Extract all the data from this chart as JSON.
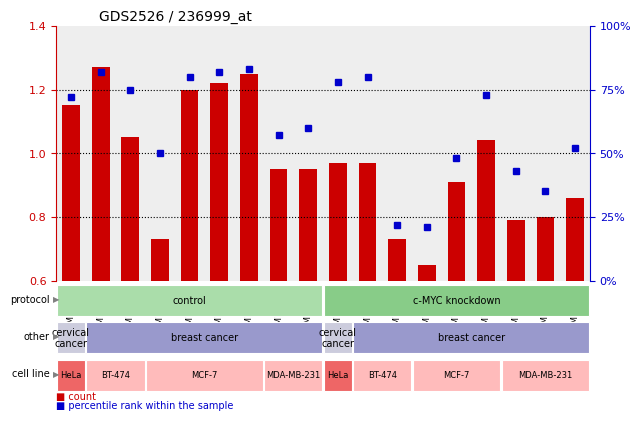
{
  "title": "GDS2526 / 236999_at",
  "samples": [
    "GSM136095",
    "GSM136097",
    "GSM136079",
    "GSM136081",
    "GSM136083",
    "GSM136085",
    "GSM136087",
    "GSM136089",
    "GSM136091",
    "GSM136096",
    "GSM136098",
    "GSM136080",
    "GSM136082",
    "GSM136084",
    "GSM136086",
    "GSM136088",
    "GSM136090",
    "GSM136092"
  ],
  "bar_values": [
    1.15,
    1.27,
    1.05,
    0.73,
    1.2,
    1.22,
    1.25,
    0.95,
    0.95,
    0.97,
    0.97,
    0.73,
    0.65,
    0.91,
    1.04,
    0.79,
    0.8,
    0.86
  ],
  "dot_values": [
    72,
    82,
    75,
    50,
    80,
    82,
    83,
    57,
    60,
    78,
    80,
    22,
    21,
    48,
    73,
    43,
    35,
    52
  ],
  "ylim_left": [
    0.6,
    1.4
  ],
  "ylim_right": [
    0,
    100
  ],
  "yticks_left": [
    0.6,
    0.8,
    1.0,
    1.2,
    1.4
  ],
  "yticks_right": [
    0,
    25,
    50,
    75,
    100
  ],
  "ytick_labels_right": [
    "0%",
    "25%",
    "50%",
    "75%",
    "100%"
  ],
  "bar_color": "#cc0000",
  "dot_color": "#0000cc",
  "grid_color": "#000000",
  "protocol_groups": [
    {
      "label": "control",
      "start": 0,
      "end": 9,
      "color": "#aaddaa"
    },
    {
      "label": "c-MYC knockdown",
      "start": 9,
      "end": 18,
      "color": "#88cc88"
    }
  ],
  "other_groups": [
    {
      "label": "cervical\ncancer",
      "start": 0,
      "end": 1,
      "color": "#ccccdd"
    },
    {
      "label": "breast cancer",
      "start": 1,
      "end": 9,
      "color": "#9999cc"
    },
    {
      "label": "cervical\ncancer",
      "start": 9,
      "end": 10,
      "color": "#ccccdd"
    },
    {
      "label": "breast cancer",
      "start": 10,
      "end": 18,
      "color": "#9999cc"
    }
  ],
  "cell_line_groups": [
    {
      "label": "HeLa",
      "start": 0,
      "end": 1,
      "color": "#ee6666"
    },
    {
      "label": "BT-474",
      "start": 1,
      "end": 3,
      "color": "#ffbbbb"
    },
    {
      "label": "MCF-7",
      "start": 3,
      "end": 7,
      "color": "#ffbbbb"
    },
    {
      "label": "MDA-MB-231",
      "start": 7,
      "end": 9,
      "color": "#ffbbbb"
    },
    {
      "label": "HeLa",
      "start": 9,
      "end": 10,
      "color": "#ee6666"
    },
    {
      "label": "BT-474",
      "start": 10,
      "end": 12,
      "color": "#ffbbbb"
    },
    {
      "label": "MCF-7",
      "start": 12,
      "end": 15,
      "color": "#ffbbbb"
    },
    {
      "label": "MDA-MB-231",
      "start": 15,
      "end": 18,
      "color": "#ffbbbb"
    }
  ],
  "row_labels": [
    "protocol",
    "other",
    "cell line"
  ],
  "bg_color": "#ffffff",
  "tick_color_left": "#cc0000",
  "tick_color_right": "#0000cc"
}
